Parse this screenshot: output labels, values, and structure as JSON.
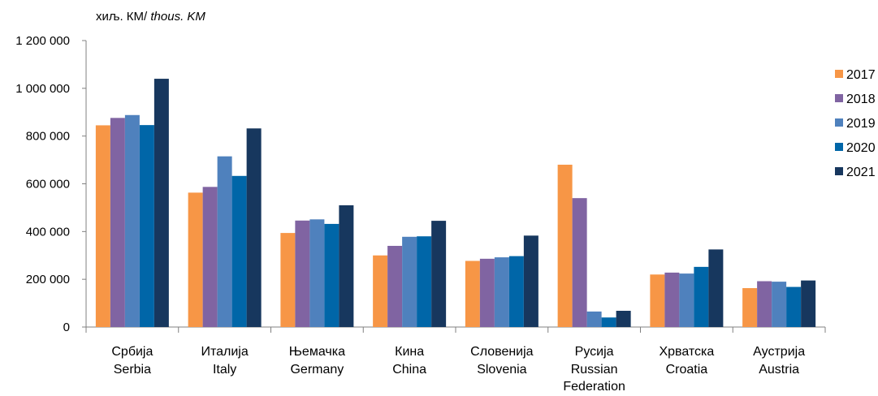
{
  "chart_data": {
    "type": "bar",
    "unit_label": {
      "local": "хиљ. КМ/",
      "english": " thous. KM"
    },
    "categories": [
      {
        "local": "Србија",
        "english": [
          "Serbia"
        ]
      },
      {
        "local": "Италија",
        "english": [
          "Italy"
        ]
      },
      {
        "local": "Њемачка",
        "english": [
          "Germany"
        ]
      },
      {
        "local": "Кина",
        "english": [
          "China"
        ]
      },
      {
        "local": "Словенија",
        "english": [
          "Slovenia"
        ]
      },
      {
        "local": "Русија",
        "english": [
          "Russian",
          "Federation"
        ]
      },
      {
        "local": "Хрватска",
        "english": [
          "Croatia"
        ]
      },
      {
        "local": "Аустрија",
        "english": [
          "Austria"
        ]
      }
    ],
    "series": [
      {
        "name": "2017",
        "color": "#F79646",
        "values": [
          845000,
          563000,
          394000,
          300000,
          277000,
          680000,
          220000,
          163000
        ]
      },
      {
        "name": "2018",
        "color": "#8064A2",
        "values": [
          876000,
          587000,
          446000,
          340000,
          286000,
          540000,
          228000,
          192000
        ]
      },
      {
        "name": "2019",
        "color": "#4F81BD",
        "values": [
          888000,
          715000,
          451000,
          378000,
          292000,
          65000,
          224000,
          190000
        ]
      },
      {
        "name": "2020",
        "color": "#0066A8",
        "values": [
          846000,
          633000,
          432000,
          380000,
          297000,
          40000,
          252000,
          168000
        ]
      },
      {
        "name": "2021",
        "color": "#17375E",
        "values": [
          1040000,
          832000,
          510000,
          445000,
          383000,
          68000,
          325000,
          195000
        ]
      }
    ],
    "ylim": [
      0,
      1200000
    ],
    "yticks": [
      {
        "value": 0,
        "label": "0"
      },
      {
        "value": 200000,
        "label": "200 000"
      },
      {
        "value": 400000,
        "label": "400 000"
      },
      {
        "value": 600000,
        "label": "600 000"
      },
      {
        "value": 800000,
        "label": "800 000"
      },
      {
        "value": 1000000,
        "label": "1 000 000"
      },
      {
        "value": 1200000,
        "label": "1 200 000"
      }
    ],
    "grid": false,
    "legend_position": "right"
  }
}
